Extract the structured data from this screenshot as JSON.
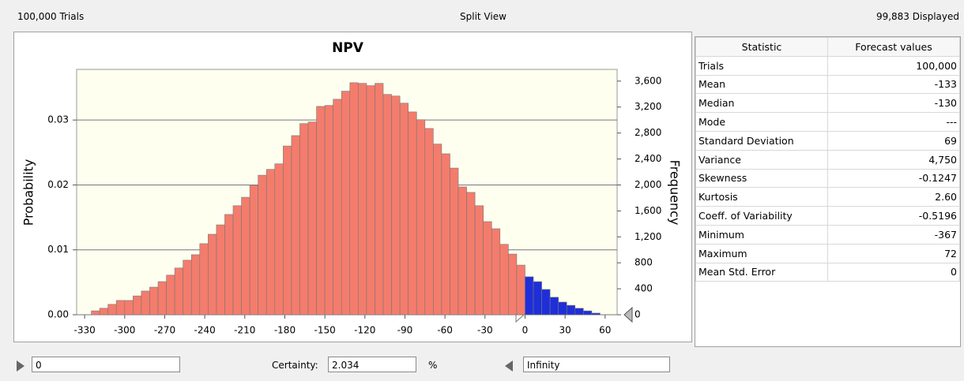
{
  "header": {
    "left": "100,000 Trials",
    "center": "Split View",
    "right": "99,883 Displayed"
  },
  "chart_data": {
    "type": "histogram",
    "title": "NPV",
    "ylabel": "Probability",
    "y2label": "Frequency",
    "xlim": [
      -336,
      69
    ],
    "xticks": [
      -330,
      -300,
      -270,
      -240,
      -210,
      -180,
      -150,
      -120,
      -90,
      -60,
      -30,
      0,
      30,
      60
    ],
    "ylim": [
      0,
      0.0378
    ],
    "yticks": [
      {
        "value": 0,
        "label": "0.00"
      },
      0.01,
      0.02,
      0.03
    ],
    "y2lim": [
      0,
      3780
    ],
    "y2ticks": [
      0,
      400,
      800,
      {
        "value": 1200,
        "label": "1,200"
      },
      {
        "value": 1600,
        "label": "1,600"
      },
      {
        "value": 2000,
        "label": "2,000"
      },
      {
        "value": 2400,
        "label": "2,400"
      },
      {
        "value": 2800,
        "label": "2,800"
      },
      {
        "value": 3200,
        "label": "3,200"
      },
      {
        "value": 3600,
        "label": "3,600"
      }
    ],
    "grid": true,
    "series": [
      {
        "color": "#f47c6c",
        "axis": "y2",
        "bins": [
          -325,
          -318.75,
          -312.5,
          -306.25,
          -300,
          -293.75,
          -287.5,
          -281.25,
          -275,
          -268.75,
          -262.5,
          -256.25,
          -250,
          -243.75,
          -237.5,
          -231.25,
          -225,
          -218.75,
          -212.5,
          -206.25,
          -200,
          -193.75,
          -187.5,
          -181.25,
          -175,
          -168.75,
          -162.5,
          -156.25,
          -150,
          -143.75,
          -137.5,
          -131.25,
          -125,
          -118.75,
          -112.5,
          -106.25,
          -100,
          -93.75,
          -87.5,
          -81.25,
          -75,
          -68.75,
          -62.5,
          -56.25,
          -50,
          -43.75,
          -37.5,
          -31.25,
          -25,
          -18.75,
          -12.5,
          -6.25,
          0
        ],
        "values": [
          60,
          100,
          160,
          220,
          220,
          290,
          365,
          425,
          510,
          610,
          720,
          840,
          925,
          1095,
          1240,
          1385,
          1545,
          1680,
          1810,
          1995,
          2150,
          2240,
          2325,
          2600,
          2760,
          2945,
          2970,
          3210,
          3225,
          3320,
          3445,
          3575,
          3565,
          3530,
          3565,
          3395,
          3370,
          3260,
          3125,
          3005,
          2870,
          2630,
          2480,
          2260,
          1970,
          1885,
          1680,
          1435,
          1325,
          1085,
          935,
          765
        ]
      },
      {
        "color": "#1f2fd8",
        "axis": "y2",
        "bins": [
          0,
          6.25,
          12.5,
          18.75,
          25,
          31.25,
          37.5,
          43.75,
          50,
          56.25
        ],
        "values": [
          585,
          510,
          390,
          270,
          195,
          145,
          100,
          60,
          25
        ]
      }
    ]
  },
  "table": {
    "columns": [
      "Statistic",
      "Forecast values"
    ],
    "rows": [
      [
        "Trials",
        "100,000"
      ],
      [
        "Mean",
        "-133"
      ],
      [
        "Median",
        "-130"
      ],
      [
        "Mode",
        "---"
      ],
      [
        "Standard Deviation",
        "69"
      ],
      [
        "Variance",
        "4,750"
      ],
      [
        "Skewness",
        "-0.1247"
      ],
      [
        "Kurtosis",
        "2.60"
      ],
      [
        "Coeff. of Variability",
        "-0.5196"
      ],
      [
        "Minimum",
        "-367"
      ],
      [
        "Maximum",
        "72"
      ],
      [
        "Mean Std. Error",
        "0"
      ]
    ]
  },
  "footer": {
    "lower": "0",
    "certainty_label": "Certainty:",
    "certainty": "2.034",
    "unit": "%",
    "upper": "Infinity"
  }
}
